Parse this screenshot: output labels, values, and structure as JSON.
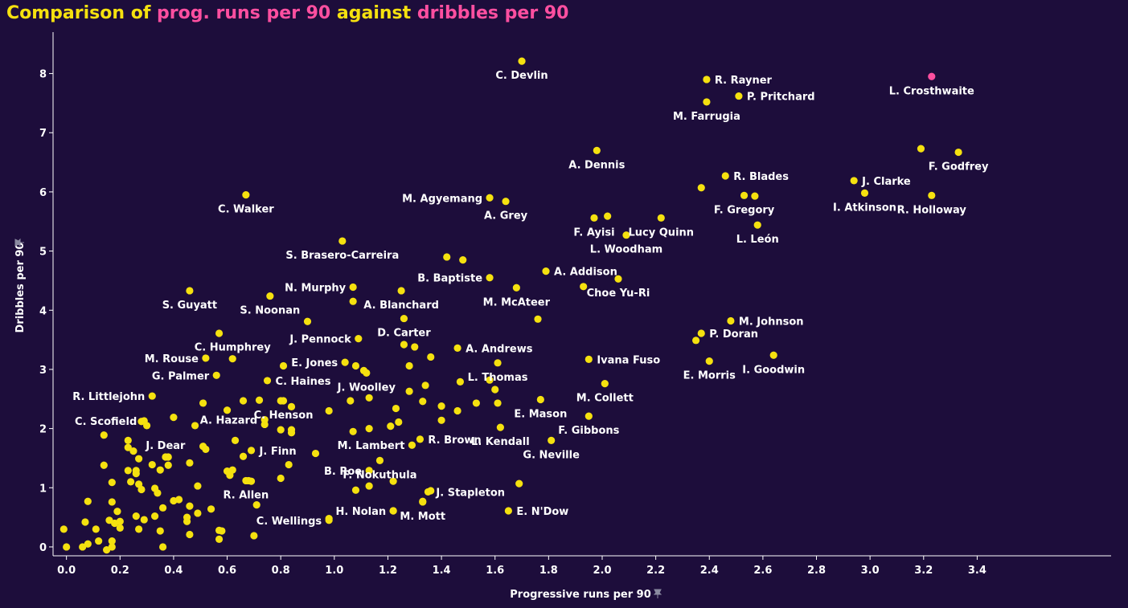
{
  "title": {
    "part1": "Comparison of ",
    "part2": "prog. runs per 90",
    "part3": " against ",
    "part4": "dribbles per 90"
  },
  "colors": {
    "background": "#1d0d3b",
    "point": "#f5e10f",
    "highlight": "#ff4fa0",
    "title_yellow": "#f5e10f",
    "title_pink": "#ff4fa0"
  },
  "chart_data": {
    "type": "scatter",
    "title": "Comparison of prog. runs per 90 against dribbles per 90",
    "xlabel": "Progressive runs per 90",
    "ylabel": "Dribbles per 90",
    "xlim": [
      -0.05,
      3.9
    ],
    "ylim": [
      -0.15,
      8.7
    ],
    "x_ticks": [
      0.0,
      0.2,
      0.4,
      0.6,
      0.8,
      1.0,
      1.2,
      1.4,
      1.6,
      1.8,
      2.0,
      2.2,
      2.4,
      2.6,
      2.8,
      3.0,
      3.2,
      3.4
    ],
    "x_tick_labels": [
      "0.0",
      "0.2",
      "0.4",
      "0.6",
      "0.8",
      "1.0",
      "1.2",
      "1.4",
      "1.6",
      "1.8",
      "2.0",
      "2.2",
      "2.4",
      "2.6",
      "2.8",
      "3.0",
      "3.2",
      "3.4"
    ],
    "y_ticks": [
      0,
      1,
      2,
      3,
      4,
      5,
      6,
      7,
      8
    ],
    "y_tick_labels": [
      "0",
      "1",
      "2",
      "3",
      "4",
      "5",
      "6",
      "7",
      "8"
    ],
    "labeled_points": [
      {
        "name": "L. Crosthwaite",
        "x": 3.23,
        "y": 7.95,
        "highlight": true,
        "pos": "below"
      },
      {
        "name": "C. Devlin",
        "x": 1.7,
        "y": 8.21,
        "pos": "below"
      },
      {
        "name": "R. Rayner",
        "x": 2.39,
        "y": 7.9,
        "pos": "right"
      },
      {
        "name": "P. Pritchard",
        "x": 2.51,
        "y": 7.62,
        "pos": "right"
      },
      {
        "name": "M. Farrugia",
        "x": 2.39,
        "y": 7.52,
        "pos": "below"
      },
      {
        "name": "A. Dennis",
        "x": 1.98,
        "y": 6.7,
        "pos": "below"
      },
      {
        "name": "F. Godfrey",
        "x": 3.33,
        "y": 6.67,
        "pos": "below"
      },
      {
        "name": "R. Blades",
        "x": 2.46,
        "y": 6.27,
        "pos": "right"
      },
      {
        "name": "J. Clarke",
        "x": 2.94,
        "y": 6.19,
        "pos": "right"
      },
      {
        "name": "F. Gregory",
        "x": 2.53,
        "y": 5.94,
        "pos": "below"
      },
      {
        "name": "I. Atkinson",
        "x": 2.98,
        "y": 5.98,
        "pos": "below"
      },
      {
        "name": "R. Holloway",
        "x": 3.23,
        "y": 5.94,
        "pos": "below"
      },
      {
        "name": "C. Walker",
        "x": 0.67,
        "y": 5.95,
        "pos": "below"
      },
      {
        "name": "M. Agyemang",
        "x": 1.58,
        "y": 5.9,
        "pos": "left"
      },
      {
        "name": "A. Grey",
        "x": 1.64,
        "y": 5.84,
        "pos": "below"
      },
      {
        "name": "F. Ayisi",
        "x": 1.97,
        "y": 5.56,
        "pos": "below"
      },
      {
        "name": "Lucy Quinn",
        "x": 2.22,
        "y": 5.56,
        "pos": "below"
      },
      {
        "name": "L. Woodham",
        "x": 2.09,
        "y": 5.27,
        "pos": "below"
      },
      {
        "name": "L. León",
        "x": 2.58,
        "y": 5.44,
        "pos": "below"
      },
      {
        "name": "S. Brasero-Carreira",
        "x": 1.03,
        "y": 5.17,
        "pos": "below"
      },
      {
        "name": "A. Addison",
        "x": 1.79,
        "y": 4.66,
        "pos": "right"
      },
      {
        "name": "B. Baptiste",
        "x": 1.58,
        "y": 4.55,
        "pos": "left"
      },
      {
        "name": "Choe Yu-Ri",
        "x": 2.06,
        "y": 4.53,
        "pos": "below"
      },
      {
        "name": "N. Murphy",
        "x": 1.07,
        "y": 4.39,
        "pos": "left"
      },
      {
        "name": "M. McAteer",
        "x": 1.68,
        "y": 4.38,
        "pos": "below"
      },
      {
        "name": "S. Guyatt",
        "x": 0.46,
        "y": 4.33,
        "pos": "below"
      },
      {
        "name": "S. Noonan",
        "x": 0.76,
        "y": 4.24,
        "pos": "below"
      },
      {
        "name": "A. Blanchard",
        "x": 1.25,
        "y": 4.33,
        "pos": "below"
      },
      {
        "name": "M. Johnson",
        "x": 2.48,
        "y": 3.82,
        "pos": "right"
      },
      {
        "name": "D. Carter",
        "x": 1.26,
        "y": 3.86,
        "pos": "below"
      },
      {
        "name": "P. Doran",
        "x": 2.37,
        "y": 3.61,
        "pos": "right"
      },
      {
        "name": "J. Pennock",
        "x": 1.09,
        "y": 3.52,
        "pos": "left"
      },
      {
        "name": "C. Humphrey",
        "x": 0.62,
        "y": 3.18,
        "pos": "above"
      },
      {
        "name": "A. Andrews",
        "x": 1.46,
        "y": 3.36,
        "pos": "right"
      },
      {
        "name": "Ivana Fuso",
        "x": 1.95,
        "y": 3.17,
        "pos": "right"
      },
      {
        "name": "I. Goodwin",
        "x": 2.64,
        "y": 3.24,
        "pos": "below"
      },
      {
        "name": "M. Rouse",
        "x": 0.52,
        "y": 3.19,
        "pos": "left"
      },
      {
        "name": "E. Jones",
        "x": 1.04,
        "y": 3.12,
        "pos": "left"
      },
      {
        "name": "E. Morris",
        "x": 2.4,
        "y": 3.14,
        "pos": "below"
      },
      {
        "name": "L. Thomas",
        "x": 1.61,
        "y": 3.11,
        "pos": "below"
      },
      {
        "name": "G. Palmer",
        "x": 0.56,
        "y": 2.9,
        "pos": "left"
      },
      {
        "name": "C. Haines",
        "x": 0.75,
        "y": 2.81,
        "pos": "right"
      },
      {
        "name": "J. Woolley",
        "x": 1.12,
        "y": 2.94,
        "pos": "below"
      },
      {
        "name": "M. Collett",
        "x": 2.01,
        "y": 2.76,
        "pos": "below"
      },
      {
        "name": "R. Littlejohn",
        "x": 0.32,
        "y": 2.55,
        "pos": "left"
      },
      {
        "name": "E. Mason",
        "x": 1.77,
        "y": 2.49,
        "pos": "below"
      },
      {
        "name": "C. Henson",
        "x": 0.81,
        "y": 2.47,
        "pos": "below"
      },
      {
        "name": "C. Scofield",
        "x": 0.29,
        "y": 2.13,
        "pos": "left"
      },
      {
        "name": "A. Hazard",
        "x": 0.74,
        "y": 2.15,
        "pos": "left"
      },
      {
        "name": "F. Gibbons",
        "x": 1.95,
        "y": 2.21,
        "pos": "below"
      },
      {
        "name": "R. Brown",
        "x": 1.32,
        "y": 1.82,
        "pos": "right"
      },
      {
        "name": "L. Kendall",
        "x": 1.62,
        "y": 2.02,
        "pos": "below"
      },
      {
        "name": "M. Lambert",
        "x": 1.29,
        "y": 1.72,
        "pos": "left"
      },
      {
        "name": "J. Dear",
        "x": 0.37,
        "y": 1.52,
        "pos": "above"
      },
      {
        "name": "J. Finn",
        "x": 0.69,
        "y": 1.63,
        "pos": "right"
      },
      {
        "name": "G. Neville",
        "x": 1.81,
        "y": 1.8,
        "pos": "below"
      },
      {
        "name": "F. Nokuthula",
        "x": 1.17,
        "y": 1.46,
        "pos": "below"
      },
      {
        "name": "B. Roe",
        "x": 1.13,
        "y": 1.29,
        "pos": "left"
      },
      {
        "name": "R. Allen",
        "x": 0.67,
        "y": 1.12,
        "pos": "below"
      },
      {
        "name": "J. Stapleton",
        "x": 1.35,
        "y": 0.93,
        "pos": "right"
      },
      {
        "name": "C. Wellings",
        "x": 0.98,
        "y": 0.45,
        "pos": "left"
      },
      {
        "name": "H. Nolan",
        "x": 1.22,
        "y": 0.61,
        "pos": "left"
      },
      {
        "name": "M. Mott",
        "x": 1.33,
        "y": 0.76,
        "pos": "below"
      },
      {
        "name": "E. N'Dow",
        "x": 1.65,
        "y": 0.61,
        "pos": "right"
      }
    ],
    "unlabeled_points": [
      [
        3.19,
        6.73
      ],
      [
        2.37,
        6.07
      ],
      [
        2.57,
        5.93
      ],
      [
        1.48,
        4.85
      ],
      [
        1.42,
        4.9
      ],
      [
        1.76,
        3.85
      ],
      [
        2.02,
        5.59
      ],
      [
        2.35,
        3.49
      ],
      [
        1.93,
        4.4
      ],
      [
        1.07,
        4.15
      ],
      [
        0.57,
        3.61
      ],
      [
        0.9,
        3.81
      ],
      [
        1.3,
        3.38
      ],
      [
        1.26,
        3.42
      ],
      [
        1.36,
        3.21
      ],
      [
        1.08,
        3.06
      ],
      [
        1.11,
        2.98
      ],
      [
        0.81,
        3.06
      ],
      [
        1.28,
        3.06
      ],
      [
        1.58,
        2.82
      ],
      [
        1.47,
        2.79
      ],
      [
        1.6,
        2.66
      ],
      [
        1.34,
        2.73
      ],
      [
        1.28,
        2.63
      ],
      [
        1.61,
        2.43
      ],
      [
        1.53,
        2.43
      ],
      [
        1.4,
        2.38
      ],
      [
        1.33,
        2.46
      ],
      [
        1.06,
        2.47
      ],
      [
        0.98,
        2.3
      ],
      [
        0.84,
        2.37
      ],
      [
        0.8,
        2.47
      ],
      [
        0.72,
        2.48
      ],
      [
        0.66,
        2.47
      ],
      [
        0.6,
        2.31
      ],
      [
        0.51,
        2.43
      ],
      [
        1.23,
        2.34
      ],
      [
        1.13,
        2.52
      ],
      [
        1.46,
        2.3
      ],
      [
        1.4,
        2.14
      ],
      [
        1.24,
        2.11
      ],
      [
        1.21,
        2.04
      ],
      [
        1.13,
        2.0
      ],
      [
        1.07,
        1.95
      ],
      [
        0.84,
        1.93
      ],
      [
        0.84,
        1.98
      ],
      [
        0.8,
        1.98
      ],
      [
        0.74,
        2.07
      ],
      [
        0.63,
        1.8
      ],
      [
        0.66,
        1.53
      ],
      [
        0.51,
        1.7
      ],
      [
        0.52,
        1.65
      ],
      [
        0.48,
        2.05
      ],
      [
        0.4,
        2.19
      ],
      [
        0.3,
        2.05
      ],
      [
        0.28,
        2.12
      ],
      [
        0.14,
        1.89
      ],
      [
        0.23,
        1.8
      ],
      [
        0.23,
        1.68
      ],
      [
        0.25,
        1.62
      ],
      [
        0.27,
        1.49
      ],
      [
        0.32,
        1.39
      ],
      [
        0.35,
        1.3
      ],
      [
        0.38,
        1.38
      ],
      [
        0.38,
        1.52
      ],
      [
        0.46,
        1.42
      ],
      [
        0.23,
        1.29
      ],
      [
        0.26,
        1.29
      ],
      [
        0.26,
        1.24
      ],
      [
        0.24,
        1.1
      ],
      [
        0.27,
        1.06
      ],
      [
        0.17,
        1.09
      ],
      [
        0.14,
        1.38
      ],
      [
        0.6,
        1.28
      ],
      [
        0.62,
        1.3
      ],
      [
        0.61,
        1.21
      ],
      [
        0.69,
        1.11
      ],
      [
        0.68,
        1.12
      ],
      [
        0.8,
        1.16
      ],
      [
        0.83,
        1.39
      ],
      [
        0.93,
        1.58
      ],
      [
        1.22,
        1.11
      ],
      [
        1.13,
        1.03
      ],
      [
        1.08,
        0.96
      ],
      [
        1.69,
        1.07
      ],
      [
        1.36,
        0.95
      ],
      [
        0.71,
        0.71
      ],
      [
        0.49,
        1.03
      ],
      [
        0.42,
        0.8
      ],
      [
        0.4,
        0.78
      ],
      [
        0.36,
        0.66
      ],
      [
        0.34,
        0.91
      ],
      [
        0.33,
        0.99
      ],
      [
        0.28,
        0.97
      ],
      [
        0.29,
        0.46
      ],
      [
        0.26,
        0.52
      ],
      [
        0.27,
        0.3
      ],
      [
        0.2,
        0.32
      ],
      [
        0.19,
        0.6
      ],
      [
        0.2,
        0.43
      ],
      [
        0.18,
        0.4
      ],
      [
        0.16,
        0.45
      ],
      [
        0.17,
        0.76
      ],
      [
        0.08,
        0.77
      ],
      [
        0.11,
        0.3
      ],
      [
        0.12,
        0.1
      ],
      [
        0.07,
        0.42
      ],
      [
        0.06,
        0.0
      ],
      [
        0.08,
        0.05
      ],
      [
        0.15,
        -0.05
      ],
      [
        0.17,
        0.0
      ],
      [
        0.17,
        0.1
      ],
      [
        0.0,
        0.0
      ],
      [
        -0.01,
        0.3
      ],
      [
        0.36,
        0.0
      ],
      [
        0.35,
        0.27
      ],
      [
        0.33,
        0.52
      ],
      [
        0.46,
        0.21
      ],
      [
        0.45,
        0.43
      ],
      [
        0.46,
        0.69
      ],
      [
        0.49,
        0.57
      ],
      [
        0.54,
        0.64
      ],
      [
        0.58,
        0.27
      ],
      [
        0.57,
        0.28
      ],
      [
        0.57,
        0.13
      ],
      [
        0.7,
        0.19
      ],
      [
        0.45,
        0.5
      ],
      [
        0.98,
        0.48
      ],
      [
        1.22,
        0.61
      ],
      [
        1.33,
        0.77
      ]
    ]
  }
}
